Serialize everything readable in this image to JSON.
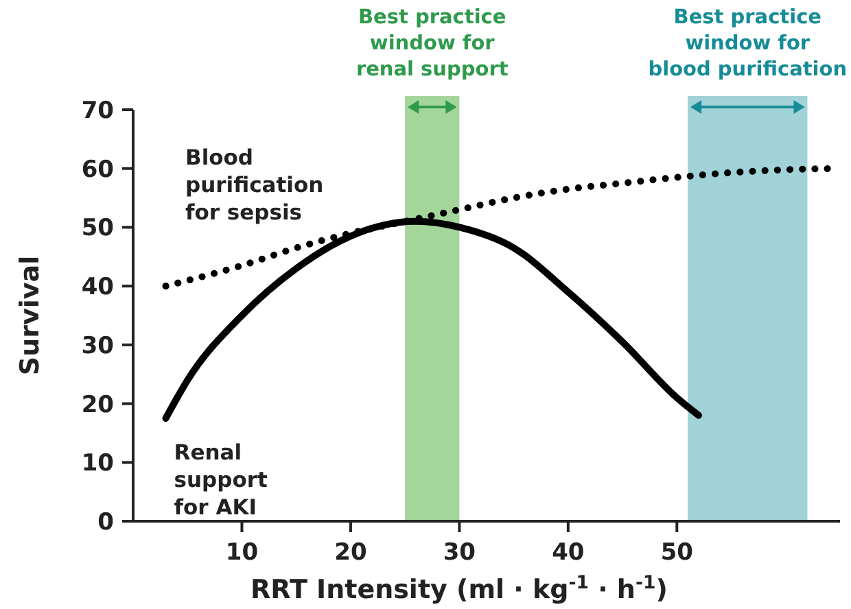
{
  "chart_data": {
    "type": "line",
    "xlabel": "RRT Intensity (ml · kg$^{-1}$ · h$^{-1}$)",
    "ylabel": "Survival",
    "xlim": [
      0,
      65
    ],
    "xticks": [
      10,
      20,
      30,
      40,
      50
    ],
    "ylim": [
      0,
      70
    ],
    "yticks": [
      0,
      10,
      20,
      30,
      40,
      50,
      60,
      70
    ],
    "grid": false,
    "series": [
      {
        "name": "Blood\npurification\nfor sepsis",
        "color": "#000000",
        "line_style": "dotted",
        "x": [
          3,
          10,
          15,
          20,
          25,
          30,
          35,
          40,
          45,
          50,
          55,
          60,
          64.5
        ],
        "values": [
          40,
          43.5,
          46.5,
          49,
          51,
          53,
          55,
          56.5,
          57.5,
          58.5,
          59.3,
          59.8,
          60
        ]
      },
      {
        "name": "Renal\nsupport\nfor AKI",
        "color": "#000000",
        "line_style": "solid",
        "x": [
          3,
          5,
          10,
          15,
          20,
          26,
          30,
          35,
          40,
          45,
          50,
          52
        ],
        "values": [
          17.5,
          24,
          35,
          43,
          48.5,
          51,
          50,
          46.5,
          39,
          30.5,
          21,
          18
        ]
      }
    ],
    "bands": [
      {
        "axis": "x",
        "from": 25,
        "to": 30,
        "label": "Best practice\nwindow for\nrenal support",
        "color": "#a4d69b"
      },
      {
        "axis": "x",
        "from": 51,
        "to": 62,
        "label": "Best practice\nwindow for\nblood purification",
        "color": "#a0d2d8"
      }
    ]
  }
}
